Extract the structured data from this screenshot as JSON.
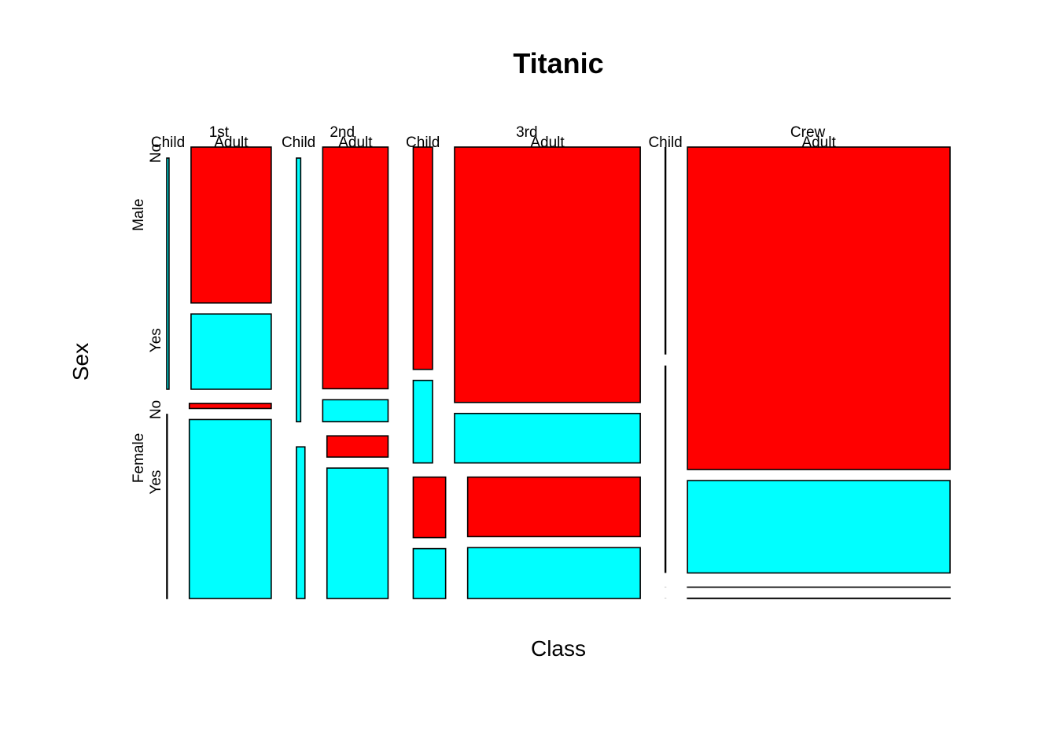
{
  "chart_data": {
    "type": "mosaic",
    "title": "Titanic",
    "xlabel": "Class",
    "ylabel": "Sex",
    "class_labels": [
      "1st",
      "2nd",
      "3rd",
      "Crew"
    ],
    "age_labels": [
      "Child",
      "Adult"
    ],
    "sex_labels": [
      "Male",
      "Female"
    ],
    "survived_labels": [
      "No",
      "Yes"
    ],
    "colors": {
      "No": "#FF0000",
      "Yes": "#00FFFF"
    },
    "counts": {
      "1st": {
        "Male": {
          "Child": {
            "No": 0,
            "Yes": 5
          },
          "Adult": {
            "No": 118,
            "Yes": 57
          }
        },
        "Female": {
          "Child": {
            "No": 0,
            "Yes": 1
          },
          "Adult": {
            "No": 4,
            "Yes": 140
          }
        }
      },
      "2nd": {
        "Male": {
          "Child": {
            "No": 0,
            "Yes": 11
          },
          "Adult": {
            "No": 154,
            "Yes": 14
          }
        },
        "Female": {
          "Child": {
            "No": 0,
            "Yes": 13
          },
          "Adult": {
            "No": 13,
            "Yes": 80
          }
        }
      },
      "3rd": {
        "Male": {
          "Child": {
            "No": 35,
            "Yes": 13
          },
          "Adult": {
            "No": 387,
            "Yes": 75
          }
        },
        "Female": {
          "Child": {
            "No": 17,
            "Yes": 14
          },
          "Adult": {
            "No": 89,
            "Yes": 76
          }
        }
      },
      "Crew": {
        "Male": {
          "Child": {
            "No": 0,
            "Yes": 0
          },
          "Adult": {
            "No": 670,
            "Yes": 192
          }
        },
        "Female": {
          "Child": {
            "No": 0,
            "Yes": 0
          },
          "Adult": {
            "No": 3,
            "Yes": 20
          }
        }
      }
    }
  }
}
